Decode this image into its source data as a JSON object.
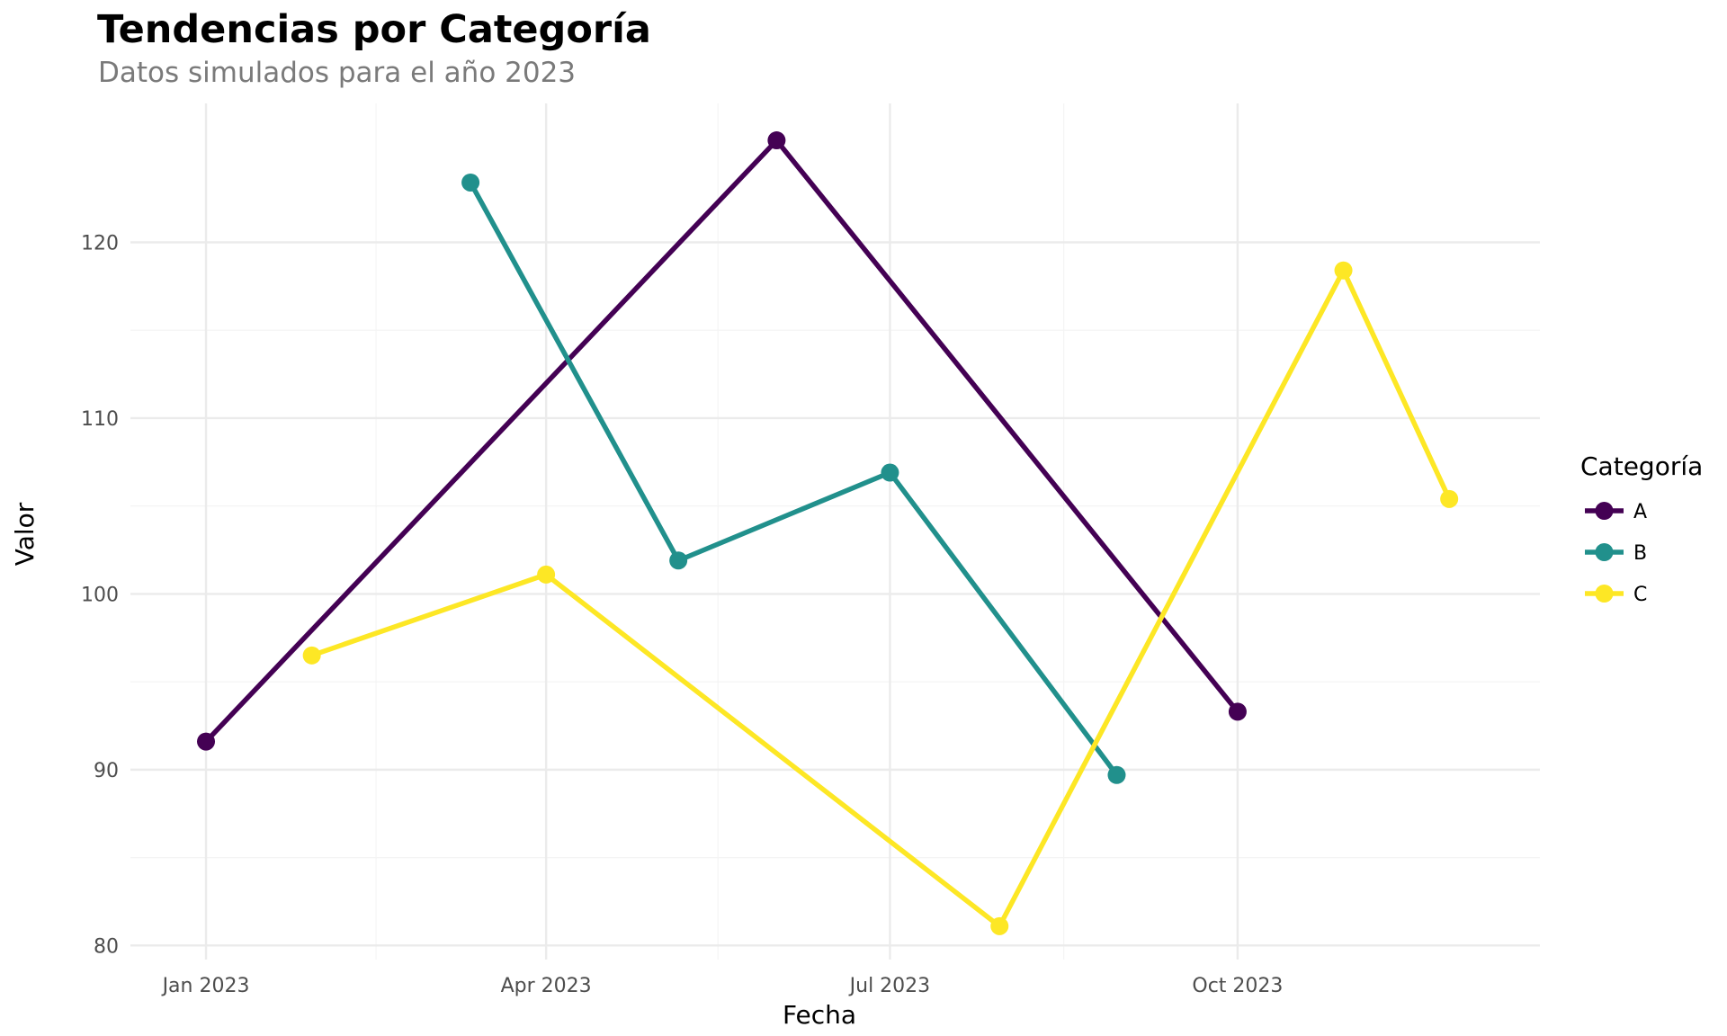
{
  "chart_data": {
    "type": "line",
    "title": "Tendencias por Categoría",
    "subtitle": "Datos simulados para el año 2023",
    "xlabel": "Fecha",
    "ylabel": "Valor",
    "x_ticks": [
      {
        "date": "2023-01-01",
        "label": "Jan 2023"
      },
      {
        "date": "2023-04-01",
        "label": "Apr 2023"
      },
      {
        "date": "2023-07-01",
        "label": "Jul 2023"
      },
      {
        "date": "2023-10-01",
        "label": "Oct 2023"
      }
    ],
    "xlim": [
      "2022-12-12",
      "2023-12-20"
    ],
    "y_ticks": [
      80,
      90,
      100,
      110,
      120
    ],
    "ylim": [
      79.2,
      127.9
    ],
    "grid": true,
    "legend": {
      "title": "Categoría",
      "placement": "right"
    },
    "series": [
      {
        "name": "A",
        "color": "#440154",
        "points": [
          {
            "x": "2023-01-01",
            "y": 91.6
          },
          {
            "x": "2023-06-01",
            "y": 125.8
          },
          {
            "x": "2023-10-01",
            "y": 93.3
          }
        ]
      },
      {
        "name": "B",
        "color": "#21908C",
        "points": [
          {
            "x": "2023-03-12",
            "y": 123.4
          },
          {
            "x": "2023-05-06",
            "y": 101.9
          },
          {
            "x": "2023-07-01",
            "y": 106.9
          },
          {
            "x": "2023-08-30",
            "y": 89.7
          }
        ]
      },
      {
        "name": "C",
        "color": "#FDE725",
        "points": [
          {
            "x": "2023-01-29",
            "y": 96.5
          },
          {
            "x": "2023-04-01",
            "y": 101.1
          },
          {
            "x": "2023-07-30",
            "y": 81.1
          },
          {
            "x": "2023-10-29",
            "y": 118.4
          },
          {
            "x": "2023-11-26",
            "y": 105.4
          }
        ]
      }
    ]
  }
}
